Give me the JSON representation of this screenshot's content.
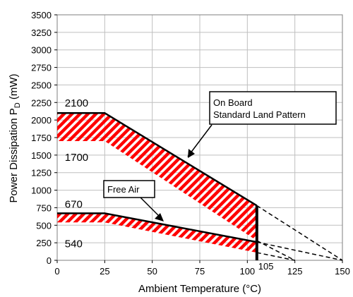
{
  "chart_data": {
    "type": "line",
    "xlabel": "Ambient Temperature (°C)",
    "ylabel_main": "Power Dissipation P",
    "ylabel_sub": "D",
    "ylabel_unit": " (mW)",
    "xlim": [
      0,
      150
    ],
    "ylim": [
      0,
      3500
    ],
    "x_ticks": [
      0,
      25,
      50,
      75,
      100,
      125,
      150
    ],
    "y_ticks": [
      0,
      250,
      500,
      750,
      1000,
      1250,
      1500,
      1750,
      2000,
      2250,
      2500,
      2750,
      3000,
      3250,
      3500
    ],
    "grid": true,
    "accent_color": "#ff0000",
    "series": [
      {
        "key": "on_board_upper",
        "points": [
          [
            0,
            2100
          ],
          [
            25,
            2100
          ],
          [
            105,
            780
          ]
        ],
        "extension": [
          [
            105,
            780
          ],
          [
            150,
            0
          ]
        ]
      },
      {
        "key": "on_board_lower",
        "points": [
          [
            0,
            1700
          ],
          [
            25,
            1700
          ],
          [
            105,
            280
          ]
        ],
        "extension": [
          [
            105,
            280
          ],
          [
            125,
            0
          ]
        ]
      },
      {
        "key": "free_air_upper",
        "points": [
          [
            0,
            670
          ],
          [
            25,
            670
          ],
          [
            105,
            260
          ]
        ],
        "extension": [
          [
            105,
            260
          ],
          [
            150,
            0
          ]
        ]
      },
      {
        "key": "free_air_lower",
        "points": [
          [
            0,
            540
          ],
          [
            25,
            540
          ],
          [
            105,
            110
          ]
        ],
        "extension": [
          [
            105,
            110
          ],
          [
            125,
            0
          ]
        ]
      }
    ],
    "limit_x": 105,
    "annotations": {
      "on_board_top": "2100",
      "on_board_bottom": "1700",
      "free_air_top": "670",
      "free_air_bottom": "540",
      "limit_label": "105"
    },
    "callouts": {
      "on_board_line1": "On Board",
      "on_board_line2": "Standard Land Pattern",
      "free_air": "Free Air"
    }
  }
}
